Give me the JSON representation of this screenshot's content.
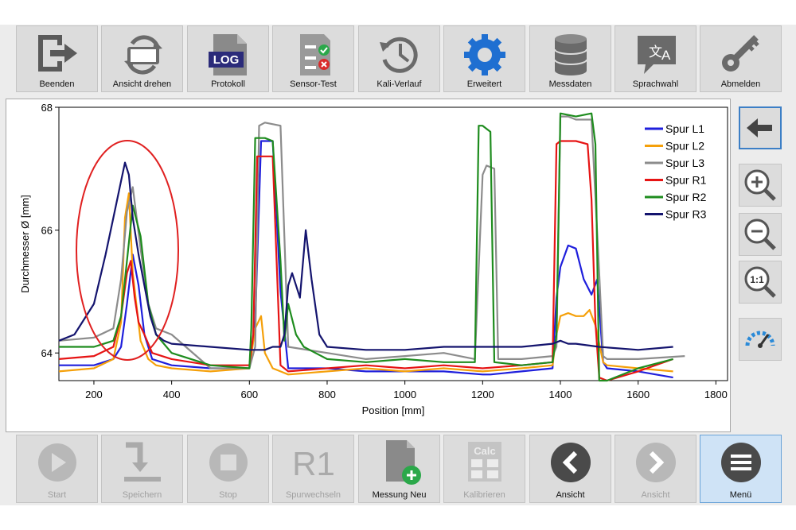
{
  "toolbar": {
    "buttons": [
      {
        "label": "Beenden",
        "icon": "exit-icon"
      },
      {
        "label": "Ansicht drehen",
        "icon": "rotate-device-icon"
      },
      {
        "label": "Protokoll",
        "icon": "log-file-icon"
      },
      {
        "label": "Sensor-Test",
        "icon": "sensor-test-icon"
      },
      {
        "label": "Kali-Verlauf",
        "icon": "history-icon"
      },
      {
        "label": "Erweitert",
        "icon": "gear-icon"
      },
      {
        "label": "Messdaten",
        "icon": "database-icon"
      },
      {
        "label": "Sprachwahl",
        "icon": "language-icon"
      },
      {
        "label": "Abmelden",
        "icon": "key-icon"
      }
    ],
    "log_icon_text": "LOG"
  },
  "side_toolbar": {
    "buttons": [
      {
        "icon": "back-arrow-icon"
      },
      {
        "icon": "zoom-in-icon"
      },
      {
        "icon": "zoom-out-icon"
      },
      {
        "icon": "zoom-reset-icon",
        "text": "1:1"
      },
      {
        "icon": "gauge-icon"
      }
    ]
  },
  "bottom_toolbar": {
    "buttons": [
      {
        "label": "Start",
        "icon": "play-icon",
        "enabled": false
      },
      {
        "label": "Speichern",
        "icon": "save-icon",
        "enabled": false
      },
      {
        "label": "Stop",
        "icon": "stop-icon",
        "enabled": false
      },
      {
        "label": "Spurwechseln",
        "icon": "track-change-icon",
        "enabled": false,
        "text": "R1"
      },
      {
        "label": "Messung Neu",
        "icon": "new-measurement-icon",
        "enabled": true
      },
      {
        "label": "Kalibrieren",
        "icon": "calculator-icon",
        "enabled": false,
        "text": "Calc"
      },
      {
        "label": "Ansicht",
        "icon": "chevron-left-icon",
        "enabled": true
      },
      {
        "label": "Ansicht",
        "icon": "chevron-right-icon",
        "enabled": false
      },
      {
        "label": "Menü",
        "icon": "menu-icon",
        "enabled": true,
        "active": true
      }
    ]
  },
  "chart_data": {
    "type": "line",
    "title": "",
    "xlabel": "Position [mm]",
    "ylabel": "Durchmesser Ø [mm]",
    "xlim": [
      110,
      1830
    ],
    "ylim": [
      63.55,
      68
    ],
    "xticks": [
      200,
      400,
      600,
      800,
      1000,
      1200,
      1400,
      1600,
      1800
    ],
    "yticks": [
      64,
      66,
      68
    ],
    "legend_position": "top-right",
    "annotation": "red-ellipse-around-first-peak",
    "series": [
      {
        "name": "Spur L1",
        "color": "#1f1fdc",
        "x": [
          110,
          200,
          250,
          270,
          285,
          300,
          315,
          330,
          350,
          400,
          500,
          600,
          615,
          630,
          660,
          680,
          700,
          800,
          900,
          1000,
          1100,
          1200,
          1220,
          1300,
          1380,
          1390,
          1400,
          1420,
          1440,
          1460,
          1480,
          1495,
          1510,
          1520,
          1600,
          1690
        ],
        "y": [
          63.8,
          63.8,
          63.9,
          64.1,
          64.8,
          65.6,
          65.1,
          64.3,
          63.9,
          63.8,
          63.75,
          63.75,
          64.5,
          67.45,
          67.45,
          65.0,
          63.75,
          63.75,
          63.7,
          63.7,
          63.7,
          63.65,
          63.65,
          63.7,
          63.75,
          64.9,
          65.4,
          65.75,
          65.7,
          65.2,
          64.95,
          65.2,
          63.85,
          63.75,
          63.7,
          63.6
        ]
      },
      {
        "name": "Spur L2",
        "color": "#f5a00a",
        "x": [
          110,
          200,
          250,
          270,
          280,
          290,
          300,
          320,
          340,
          360,
          400,
          500,
          600,
          615,
          630,
          640,
          660,
          680,
          700,
          800,
          900,
          1000,
          1100,
          1200,
          1300,
          1380,
          1390,
          1400,
          1420,
          1440,
          1460,
          1475,
          1490,
          1510,
          1520,
          1600,
          1690
        ],
        "y": [
          63.7,
          63.75,
          63.9,
          64.5,
          66.2,
          66.6,
          65.3,
          64.2,
          63.9,
          63.8,
          63.75,
          63.7,
          63.75,
          64.4,
          64.6,
          64.0,
          63.75,
          63.7,
          63.65,
          63.7,
          63.75,
          63.7,
          63.75,
          63.7,
          63.75,
          63.8,
          64.3,
          64.6,
          64.65,
          64.6,
          64.6,
          64.7,
          64.45,
          63.85,
          63.8,
          63.75,
          63.7
        ]
      },
      {
        "name": "Spur L3",
        "color": "#8c8c8c",
        "x": [
          110,
          200,
          250,
          270,
          285,
          300,
          320,
          340,
          360,
          400,
          500,
          600,
          615,
          625,
          640,
          680,
          700,
          800,
          900,
          1000,
          1100,
          1180,
          1200,
          1210,
          1230,
          1240,
          1300,
          1380,
          1390,
          1400,
          1420,
          1440,
          1460,
          1480,
          1500,
          1510,
          1520,
          1600,
          1720
        ],
        "y": [
          64.2,
          64.25,
          64.4,
          65.2,
          66.3,
          66.7,
          65.7,
          64.8,
          64.4,
          64.3,
          63.75,
          63.75,
          64.1,
          67.7,
          67.75,
          67.7,
          64.1,
          64.0,
          63.9,
          63.95,
          64.0,
          63.9,
          66.9,
          67.05,
          67.0,
          63.9,
          63.9,
          63.95,
          64.1,
          67.85,
          67.85,
          67.8,
          67.8,
          67.8,
          65.3,
          63.95,
          63.9,
          63.9,
          63.95
        ]
      },
      {
        "name": "Spur R1",
        "color": "#e61414",
        "x": [
          110,
          200,
          250,
          270,
          285,
          295,
          305,
          315,
          330,
          350,
          400,
          500,
          600,
          610,
          620,
          660,
          670,
          680,
          700,
          800,
          900,
          1000,
          1100,
          1200,
          1300,
          1380,
          1390,
          1400,
          1440,
          1470,
          1480,
          1490,
          1500,
          1520,
          1600,
          1690
        ],
        "y": [
          63.9,
          63.95,
          64.1,
          64.6,
          65.3,
          65.5,
          64.9,
          64.5,
          64.3,
          64.0,
          63.9,
          63.8,
          63.8,
          64.3,
          67.2,
          67.2,
          65.5,
          63.8,
          63.7,
          63.75,
          63.8,
          63.75,
          63.8,
          63.75,
          63.8,
          63.85,
          67.4,
          67.45,
          67.45,
          67.4,
          66.5,
          64.5,
          63.6,
          63.55,
          63.7,
          63.9
        ]
      },
      {
        "name": "Spur R2",
        "color": "#1e8c1e",
        "x": [
          110,
          200,
          250,
          270,
          285,
          300,
          320,
          340,
          360,
          400,
          500,
          600,
          605,
          615,
          640,
          660,
          680,
          690,
          700,
          720,
          740,
          770,
          800,
          900,
          1000,
          1100,
          1180,
          1190,
          1200,
          1220,
          1230,
          1300,
          1380,
          1390,
          1400,
          1440,
          1480,
          1490,
          1500,
          1520,
          1600,
          1690
        ],
        "y": [
          64.1,
          64.1,
          64.2,
          64.6,
          65.5,
          66.4,
          65.9,
          64.8,
          64.3,
          64.0,
          63.8,
          63.75,
          64.4,
          67.5,
          67.5,
          67.45,
          65.5,
          64.2,
          64.8,
          64.3,
          64.1,
          64.0,
          63.9,
          63.85,
          63.9,
          63.85,
          63.85,
          67.7,
          67.7,
          67.6,
          63.85,
          63.8,
          63.85,
          64.3,
          67.9,
          67.85,
          67.9,
          67.4,
          63.55,
          63.55,
          63.75,
          63.9
        ]
      },
      {
        "name": "Spur R3",
        "color": "#14146e",
        "x": [
          110,
          150,
          200,
          230,
          250,
          270,
          280,
          290,
          300,
          315,
          330,
          345,
          360,
          380,
          400,
          500,
          600,
          640,
          660,
          680,
          690,
          700,
          710,
          730,
          745,
          760,
          780,
          800,
          900,
          1000,
          1100,
          1200,
          1300,
          1380,
          1400,
          1420,
          1440,
          1500,
          1600,
          1690
        ],
        "y": [
          64.2,
          64.3,
          64.8,
          65.6,
          66.2,
          66.8,
          67.1,
          66.9,
          66.2,
          65.6,
          65.1,
          64.6,
          64.3,
          64.2,
          64.15,
          64.1,
          64.05,
          64.05,
          64.1,
          64.1,
          64.3,
          65.1,
          65.3,
          64.9,
          66.0,
          65.2,
          64.3,
          64.1,
          64.05,
          64.05,
          64.1,
          64.1,
          64.1,
          64.15,
          64.2,
          64.15,
          64.15,
          64.1,
          64.05,
          64.1
        ]
      }
    ]
  }
}
